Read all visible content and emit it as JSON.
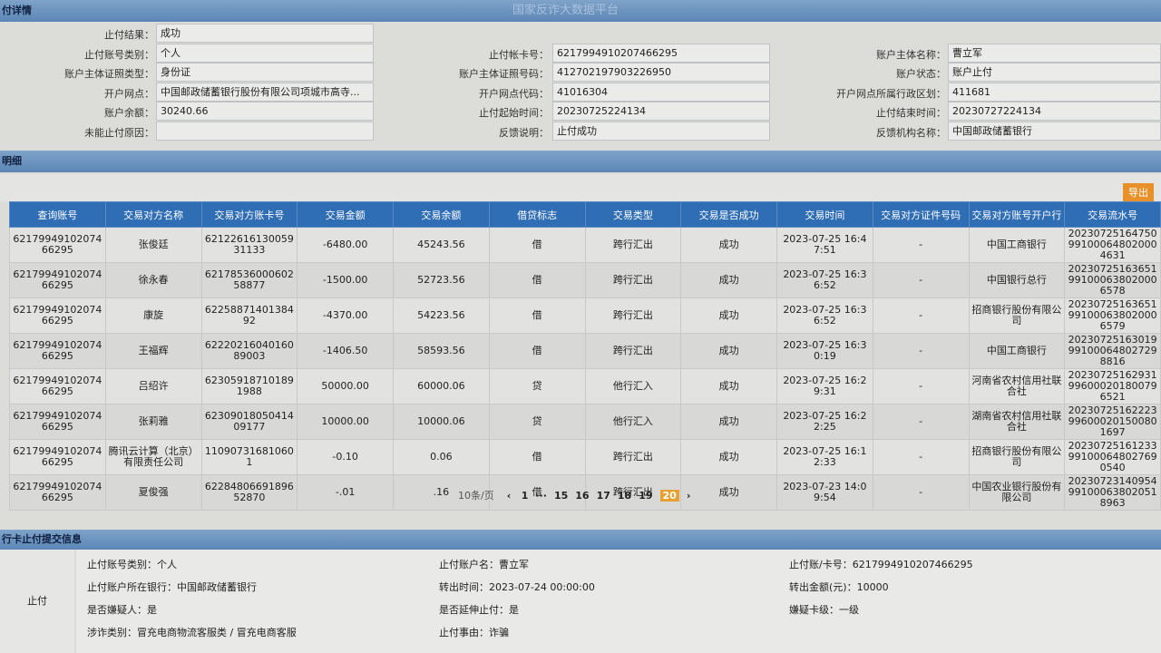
{
  "header": {
    "title": "国家反诈大数据平台",
    "section": "付详情"
  },
  "info": {
    "rows": [
      [
        {
          "label": "止付结果：",
          "value": "成功"
        }
      ],
      [
        {
          "label": "止付账号类别：",
          "value": "个人"
        },
        {
          "label": "止付帐卡号：",
          "value": "6217994910207466295"
        },
        {
          "label": "账户主体名称：",
          "value": "曹立军"
        }
      ],
      [
        {
          "label": "账户主体证照类型：",
          "value": "身份证"
        },
        {
          "label": "账户主体证照号码：",
          "value": "412702197903226950"
        },
        {
          "label": "账户状态：",
          "value": "账户止付"
        }
      ],
      [
        {
          "label": "开户网点：",
          "value": "中国邮政储蓄银行股份有限公司项城市高寺..."
        },
        {
          "label": "开户网点代码：",
          "value": "41016304"
        },
        {
          "label": "开户网点所属行政区划：",
          "value": "411681"
        }
      ],
      [
        {
          "label": "账户余额：",
          "value": "30240.66"
        },
        {
          "label": "止付起始时间：",
          "value": "20230725224134"
        },
        {
          "label": "止付结束时间：",
          "value": "20230727224134"
        }
      ],
      [
        {
          "label": "未能止付原因："
        },
        {
          "label": "反馈说明：",
          "value": "止付成功"
        },
        {
          "label": "反馈机构名称：",
          "value": "中国邮政储蓄银行"
        }
      ]
    ]
  },
  "detail": {
    "section": "明细",
    "export": "导出",
    "columns": [
      "查询账号",
      "交易对方名称",
      "交易对方账卡号",
      "交易金额",
      "交易余额",
      "借贷标志",
      "交易类型",
      "交易是否成功",
      "交易时间",
      "交易对方证件号码",
      "交易对方账号开户行",
      "交易流水号"
    ],
    "rows": [
      [
        "6217994910207466295",
        "张俊廷",
        "6212261613005931133",
        "-6480.00",
        "45243.56",
        "借",
        "跨行汇出",
        "成功",
        "2023-07-25 16:47:51",
        "-",
        "中国工商银行",
        "20230725164750991000648020004631"
      ],
      [
        "6217994910207466295",
        "徐永春",
        "6217853600060258877",
        "-1500.00",
        "52723.56",
        "借",
        "跨行汇出",
        "成功",
        "2023-07-25 16:36:52",
        "-",
        "中国银行总行",
        "20230725163651991000638020006578"
      ],
      [
        "6217994910207466295",
        "康旋",
        "6225887140138492",
        "-4370.00",
        "54223.56",
        "借",
        "跨行汇出",
        "成功",
        "2023-07-25 16:36:52",
        "-",
        "招商银行股份有限公司",
        "20230725163651991000638020006579"
      ],
      [
        "6217994910207466295",
        "王福辉",
        "6222021604016089003",
        "-1406.50",
        "58593.56",
        "借",
        "跨行汇出",
        "成功",
        "2023-07-25 16:30:19",
        "-",
        "中国工商银行",
        "20230725163019991000648027298816"
      ],
      [
        "6217994910207466295",
        "吕绍许",
        "623059187101891988",
        "50000.00",
        "60000.06",
        "贷",
        "他行汇入",
        "成功",
        "2023-07-25 16:29:31",
        "-",
        "河南省农村信用社联合社",
        "20230725162931996000201800796521"
      ],
      [
        "6217994910207466295",
        "张莉雅",
        "6230901805041409177",
        "10000.00",
        "10000.06",
        "贷",
        "他行汇入",
        "成功",
        "2023-07-25 16:22:25",
        "-",
        "湖南省农村信用社联合社",
        "20230725162223996000201500801697"
      ],
      [
        "6217994910207466295",
        "腾讯云计算（北京）有限责任公司",
        "110907316810601",
        "-0.10",
        "0.06",
        "借",
        "跨行汇出",
        "成功",
        "2023-07-25 16:12:33",
        "-",
        "招商银行股份有限公司",
        "20230725161233991000648027690540"
      ],
      [
        "6217994910207466295",
        "夏俊强",
        "6228480669189652870",
        "-.01",
        ".16",
        "借",
        "跨行汇出",
        "成功",
        "2023-07-23 14:09:54",
        "-",
        "中国农业银行股份有限公司",
        "20230723140954991000638020518963"
      ]
    ],
    "pagination": {
      "size": "10条/页",
      "pages": [
        "1",
        "···",
        "15",
        "16",
        "17",
        "18",
        "19",
        "20"
      ]
    }
  },
  "submit": {
    "section": "行卡止付提交信息",
    "label": "止付",
    "fields": [
      [
        "止付账号类别：个人",
        "止付账户名：曹立军",
        "止付账/卡号：6217994910207466295"
      ],
      [
        "止付账户所在银行：中国邮政储蓄银行",
        "转出时间：2023-07-24 00:00:00",
        "转出金额(元)：10000"
      ],
      [
        "是否嫌疑人：是",
        "是否延伸止付：是",
        "嫌疑卡级：一级"
      ],
      [
        "涉诈类别：冒充电商物流客服类 / 冒充电商客服",
        "止付事由：诈骗"
      ]
    ]
  }
}
